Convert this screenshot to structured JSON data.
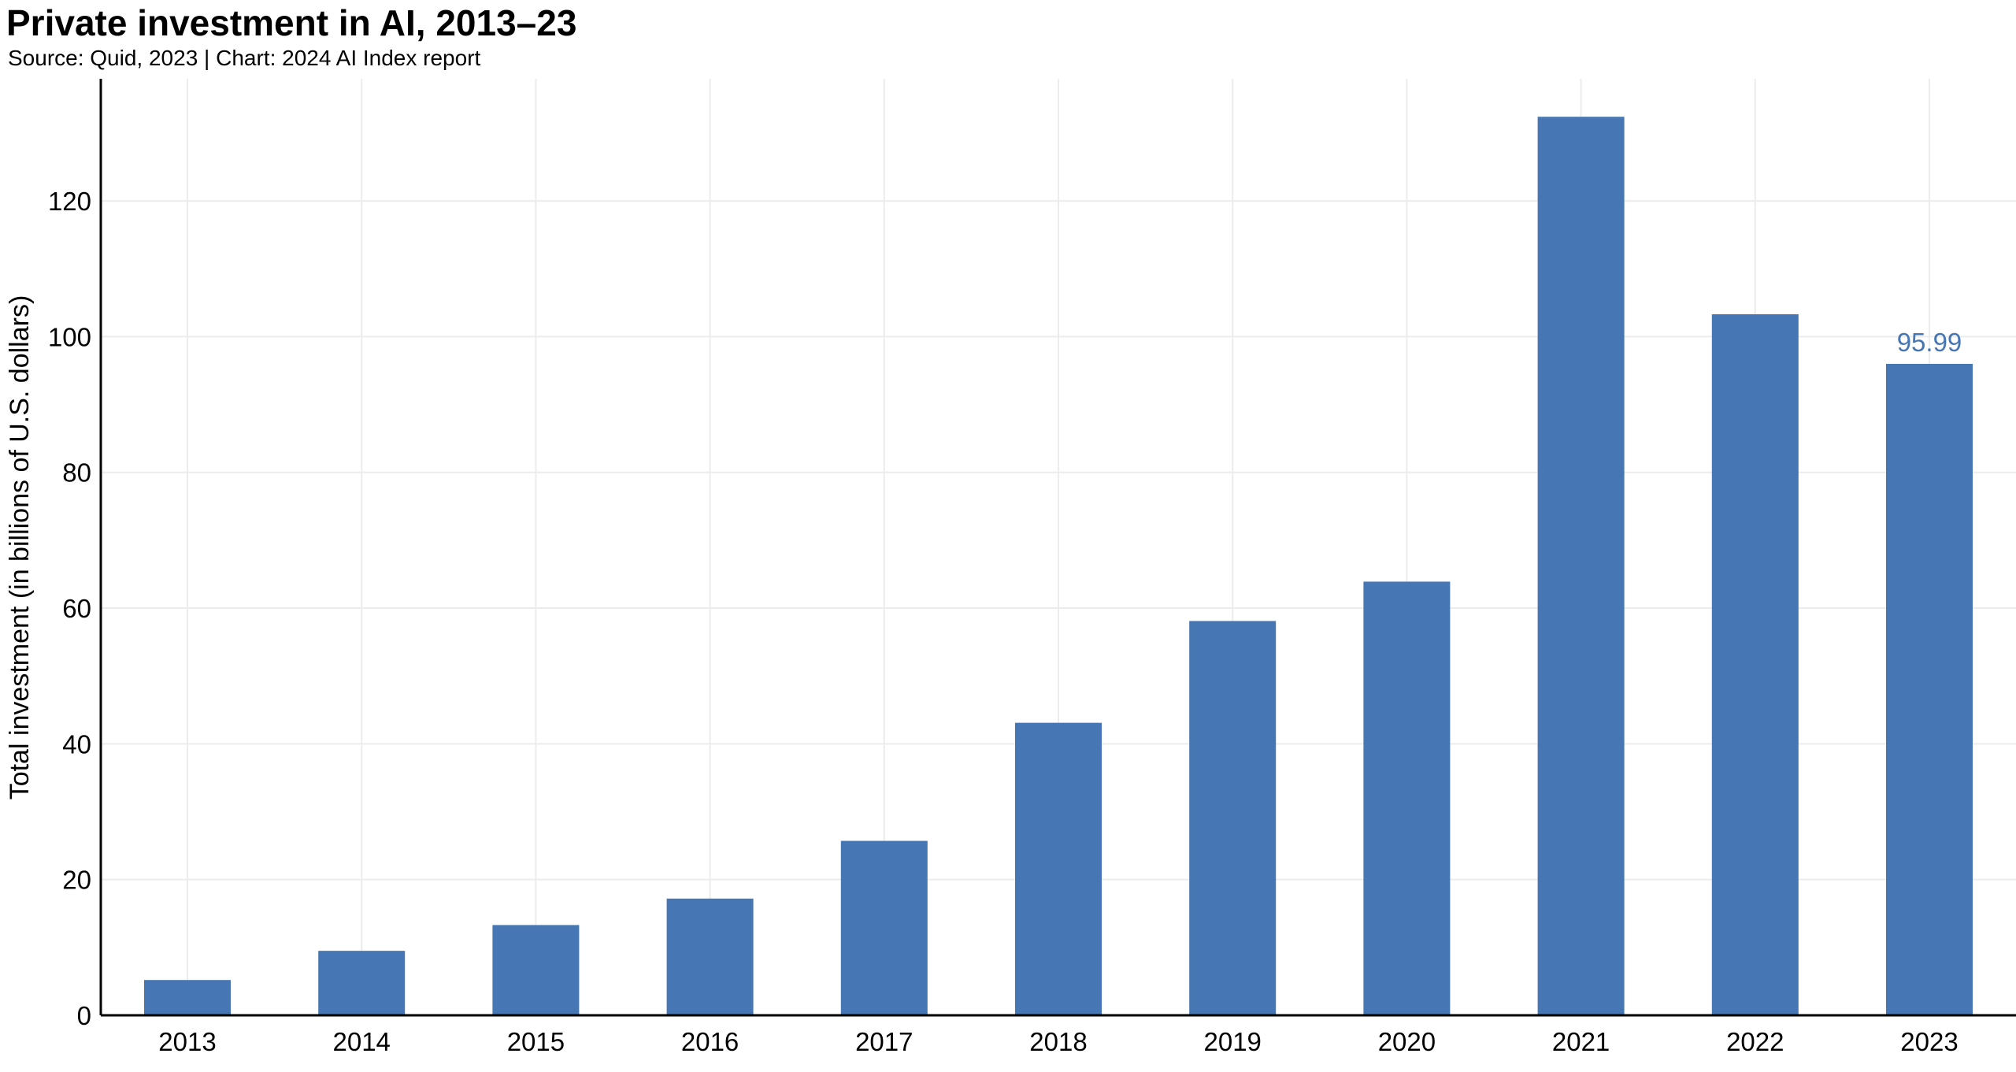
{
  "header": {
    "title": "Private investment in AI, 2013–23",
    "subtitle": "Source: Quid, 2023 | Chart: 2024 AI Index report"
  },
  "chart_data": {
    "type": "bar",
    "title": "Private investment in AI, 2013–23",
    "subtitle": "Source: Quid, 2023 | Chart: 2024 AI Index report",
    "xlabel": "",
    "ylabel": "Total investment (in billions of U.S. dollars)",
    "categories": [
      "2013",
      "2014",
      "2015",
      "2016",
      "2017",
      "2018",
      "2019",
      "2020",
      "2021",
      "2022",
      "2023"
    ],
    "values": [
      5.2,
      9.5,
      13.3,
      17.2,
      25.7,
      43.1,
      58.1,
      63.9,
      132.4,
      103.3,
      95.99
    ],
    "ylim": [
      0,
      138
    ],
    "yticks": [
      0,
      20,
      40,
      60,
      80,
      100,
      120
    ],
    "data_labels": [
      {
        "category": "2023",
        "text": "95.99"
      }
    ],
    "grid": true,
    "colors": {
      "bar": "#4776b4",
      "data_label": "#4776b4",
      "grid": "#ececec",
      "axis": "#000000"
    }
  }
}
